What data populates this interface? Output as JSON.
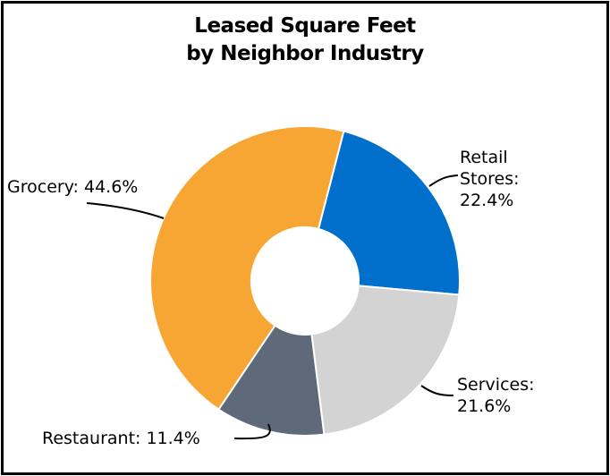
{
  "chart_data": {
    "type": "pie",
    "title": [
      "Leased Square Feet",
      "by Neighbor Industry"
    ],
    "slices": [
      {
        "name": "Retail Stores",
        "label_lines": [
          "Retail",
          "Stores:",
          "22.4%"
        ],
        "value": 22.4,
        "color": "#0070CC"
      },
      {
        "name": "Services",
        "label_lines": [
          "Services:",
          "21.6%"
        ],
        "value": 21.6,
        "color": "#D3D3D3"
      },
      {
        "name": "Restaurant",
        "label_lines": [
          "Restaurant: 11.4%"
        ],
        "value": 11.4,
        "color": "#5E6A79"
      },
      {
        "name": "Grocery",
        "label_lines": [
          "Grocery: 44.6%"
        ],
        "value": 44.6,
        "color": "#F7A533"
      }
    ]
  }
}
